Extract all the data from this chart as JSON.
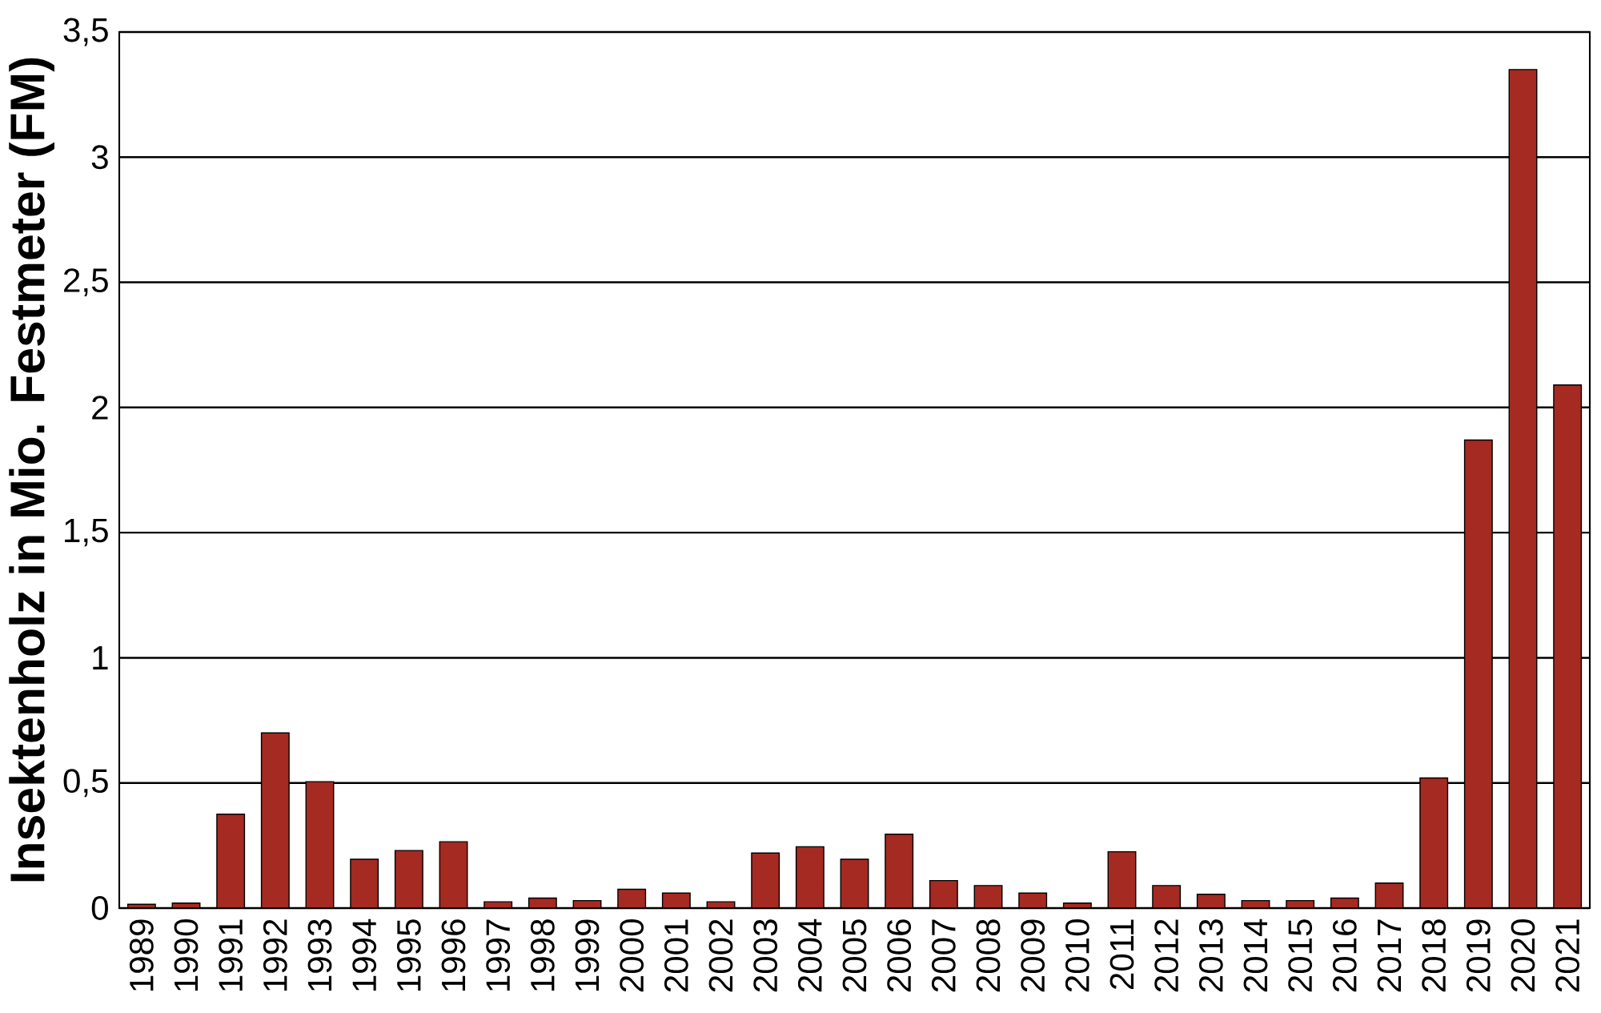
{
  "chart_data": {
    "type": "bar",
    "ylabel": "Insektenholz in Mio. Festmeter (FM)",
    "categories": [
      "1989",
      "1990",
      "1991",
      "1992",
      "1993",
      "1994",
      "1995",
      "1996",
      "1997",
      "1998",
      "1999",
      "2000",
      "2001",
      "2002",
      "2003",
      "2004",
      "2005",
      "2006",
      "2007",
      "2008",
      "2009",
      "2010",
      "2011",
      "2012",
      "2013",
      "2014",
      "2015",
      "2016",
      "2017",
      "2018",
      "2019",
      "2020",
      "2021"
    ],
    "values": [
      0.015,
      0.02,
      0.375,
      0.7,
      0.505,
      0.195,
      0.23,
      0.265,
      0.025,
      0.04,
      0.03,
      0.075,
      0.06,
      0.025,
      0.22,
      0.245,
      0.195,
      0.295,
      0.11,
      0.09,
      0.06,
      0.02,
      0.225,
      0.09,
      0.055,
      0.03,
      0.03,
      0.04,
      0.1,
      0.52,
      1.87,
      3.35,
      2.09
    ],
    "color": "#a52a22",
    "ylim": [
      0,
      3.5
    ],
    "yticks": [
      0,
      {
        "value": 0.5,
        "label": "0,5"
      },
      1,
      {
        "value": 1.5,
        "label": "1,5"
      },
      2,
      {
        "value": 2.5,
        "label": "2,5"
      },
      3,
      {
        "value": 3.5,
        "label": "3,5"
      }
    ],
    "grid": "y"
  }
}
